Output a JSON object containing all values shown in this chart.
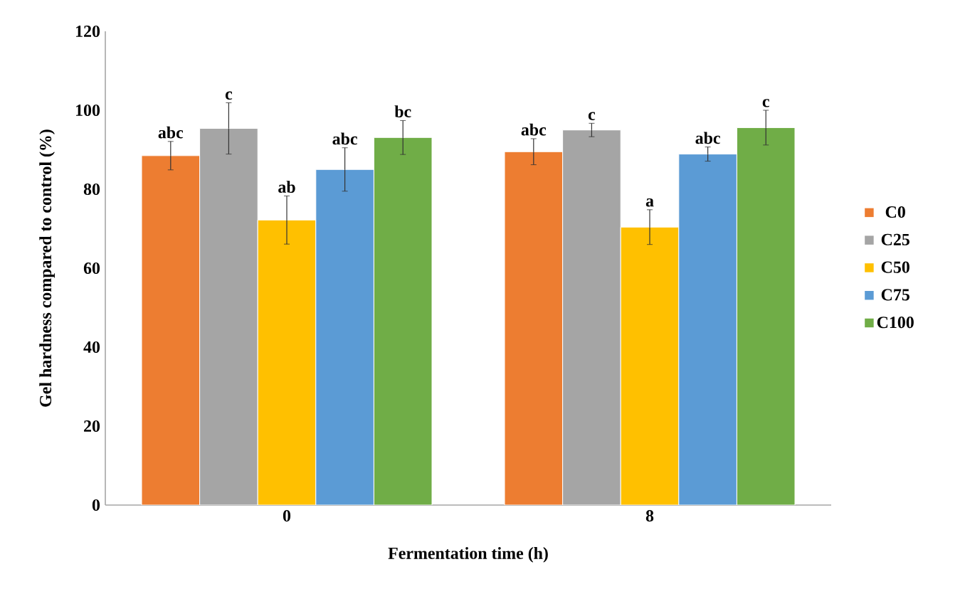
{
  "chart_data": {
    "type": "bar",
    "xlabel": "Fermentation time (h)",
    "ylabel": "Gel hardness compared to control (%)",
    "categories": [
      "0",
      "8"
    ],
    "series": [
      {
        "name": "C0",
        "color": "#ed7d31",
        "values": [
          88.5,
          89.5
        ],
        "errors": [
          3.6,
          3.3
        ]
      },
      {
        "name": "C25",
        "color": "#a5a5a5",
        "values": [
          95.4,
          95.0
        ],
        "errors": [
          6.5,
          1.7
        ]
      },
      {
        "name": "C50",
        "color": "#ffc000",
        "values": [
          72.2,
          70.4
        ],
        "errors": [
          6.1,
          4.4
        ]
      },
      {
        "name": "C75",
        "color": "#5b9bd5",
        "values": [
          85.0,
          88.9
        ],
        "errors": [
          5.5,
          1.8
        ]
      },
      {
        "name": "C100",
        "color": "#70ad47",
        "values": [
          93.1,
          95.6
        ],
        "errors": [
          4.3,
          4.4
        ]
      }
    ],
    "ylim": [
      0,
      120
    ],
    "yticks": [
      0,
      20,
      40,
      60,
      80,
      100,
      120
    ],
    "grid": false,
    "legend": "right",
    "annotations": [
      "abc",
      "c",
      "ab",
      "abc",
      "bc",
      "abc",
      "c",
      "a",
      "abc",
      "c"
    ]
  }
}
